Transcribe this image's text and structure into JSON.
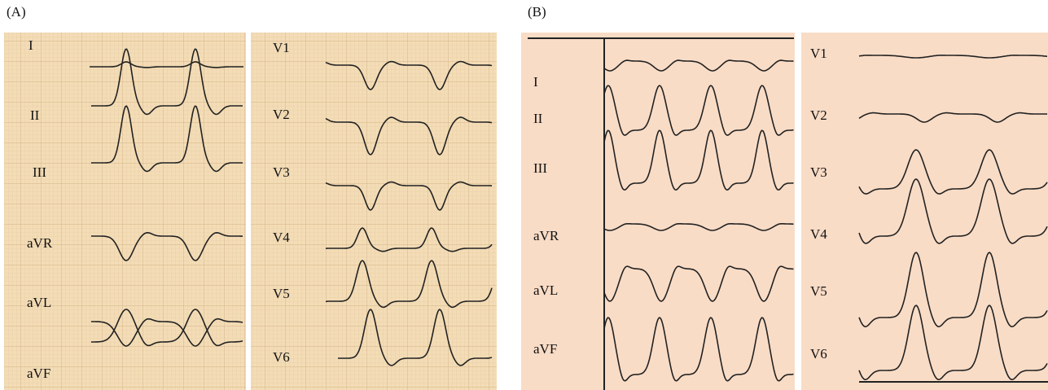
{
  "panels": [
    {
      "label": "(A)",
      "leads_left": [
        "I",
        "II",
        "III",
        "aVR",
        "aVL",
        "aVF"
      ],
      "leads_right": [
        "V1",
        "V2",
        "V3",
        "V4",
        "V5",
        "V6"
      ]
    },
    {
      "label": "(B)",
      "leads_left": [
        "I",
        "II",
        "III",
        "aVR",
        "aVL",
        "aVF"
      ],
      "leads_right": [
        "V1",
        "V2",
        "V3",
        "V4",
        "V5",
        "V6"
      ]
    }
  ]
}
